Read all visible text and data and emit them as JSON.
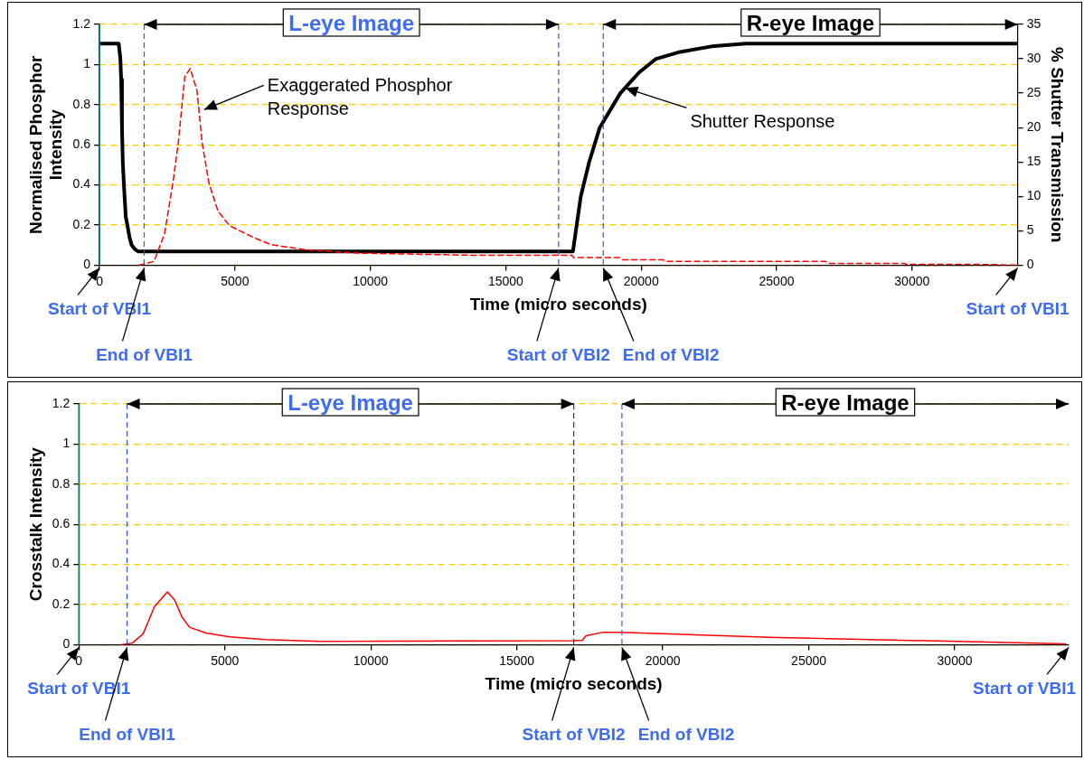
{
  "chart_data": [
    {
      "type": "line",
      "xlabel": "Time (micro seconds)",
      "ylabel": "Normalised Phosphor Intensity",
      "y2label": "% Shutter Transmission",
      "xlim": [
        0,
        33900
      ],
      "xticks": [
        0,
        5000,
        10000,
        15000,
        20000,
        25000,
        30000
      ],
      "ylim": [
        0,
        1.2
      ],
      "yticks": [
        0,
        0.2,
        0.4,
        0.6,
        0.8,
        1,
        1.2
      ],
      "y2lim": [
        0,
        35
      ],
      "y2ticks": [
        0,
        5,
        10,
        15,
        20,
        25,
        30,
        35
      ],
      "grid": "y",
      "marker": "none",
      "legend": false,
      "series": [
        {
          "color": "#ff0000",
          "line_style": "dashed",
          "x": [
            1460,
            2010,
            2400,
            2710,
            2910,
            3150,
            3350,
            3600,
            3790,
            4040,
            4370,
            4810,
            5700,
            6340,
            7600,
            9510,
            13960,
            17450,
            17500,
            19200,
            19300,
            20800,
            20900,
            26800,
            26900,
            29700,
            29800,
            32300,
            33900
          ],
          "values": [
            0,
            0.018,
            0.155,
            0.41,
            0.61,
            0.94,
            0.98,
            0.87,
            0.61,
            0.41,
            0.27,
            0.196,
            0.137,
            0.102,
            0.077,
            0.06,
            0.049,
            0.049,
            0.038,
            0.038,
            0.027,
            0.027,
            0.019,
            0.019,
            0.009,
            0.009,
            0.004,
            0.004,
            0
          ]
        },
        {
          "color": "#000000",
          "line_style": "solid",
          "axis": "y2",
          "x": [
            0,
            710,
            770,
            800,
            830,
            860,
            910,
            970,
            1030,
            1110,
            1190,
            1310,
            1420,
            17480,
            17770,
            18080,
            18470,
            19230,
            19920,
            20550,
            21440,
            22600,
            23860,
            33900
          ],
          "values": [
            32.2,
            32.2,
            30,
            27,
            20,
            15,
            11,
            7,
            5.8,
            4,
            2.9,
            2.3,
            2,
            2,
            10,
            15,
            20,
            25,
            28,
            30,
            31,
            31.8,
            32.2,
            32.2
          ]
        }
      ],
      "ref_lines": [
        {
          "axis": "x",
          "value": 0,
          "label": "Start of VBI1",
          "color": "#008080",
          "line_style": "solid"
        },
        {
          "axis": "x",
          "value": 1650,
          "label": "End of VBI1",
          "color": "#3355ee",
          "line_style": "dashed"
        },
        {
          "axis": "x",
          "value": 16950,
          "label": "Start of VBI2",
          "color": "#3355ee",
          "line_style": "dashed"
        },
        {
          "axis": "x",
          "value": 18600,
          "label": "End of VBI2",
          "color": "#3355ee",
          "line_style": "dashed"
        }
      ],
      "annotations": [
        "L-eye Image",
        "R-eye Image",
        "Exaggerated Phosphor Response",
        {
          "text": "Shutter Response",
          "x": 19405,
          "y": 0.883
        },
        "Start of VBI1"
      ]
    },
    {
      "type": "line",
      "xlabel": "Time (micro seconds)",
      "ylabel": "Crosstalk Intensity",
      "xlim": [
        0,
        33900
      ],
      "xticks": [
        0,
        5000,
        10000,
        15000,
        20000,
        25000,
        30000
      ],
      "ylim": [
        0,
        1.2
      ],
      "yticks": [
        0,
        0.2,
        0.4,
        0.6,
        0.8,
        1,
        1.2
      ],
      "grid": "y",
      "marker": "none",
      "legend": false,
      "series": [
        {
          "color": "#ff0000",
          "line_style": "solid",
          "x": [
            1440,
            1820,
            2200,
            2590,
            3030,
            3280,
            3530,
            3790,
            4360,
            5120,
            6390,
            8300,
            16930,
            17240,
            17370,
            17940,
            18580,
            23660,
            33800
          ],
          "values": [
            0,
            0.007,
            0.054,
            0.19,
            0.263,
            0.222,
            0.138,
            0.087,
            0.058,
            0.04,
            0.025,
            0.017,
            0.02,
            0.022,
            0.045,
            0.062,
            0.062,
            0.037,
            0.004
          ]
        }
      ],
      "ref_lines": [
        {
          "axis": "x",
          "value": 0,
          "label": "Start of VBI1",
          "color": "#008080",
          "line_style": "solid"
        },
        {
          "axis": "x",
          "value": 1650,
          "label": "End of VBI1",
          "color": "#3355ee",
          "line_style": "dashed"
        },
        {
          "axis": "x",
          "value": 16950,
          "label": "Start of VBI2",
          "color": "#333333",
          "line_style": "dashed"
        },
        {
          "axis": "x",
          "value": 18600,
          "label": "End of VBI2",
          "color": "#3355ee",
          "line_style": "dashed"
        }
      ],
      "annotations": [
        "L-eye Image",
        "R-eye Image",
        "Start of VBI1"
      ]
    }
  ]
}
